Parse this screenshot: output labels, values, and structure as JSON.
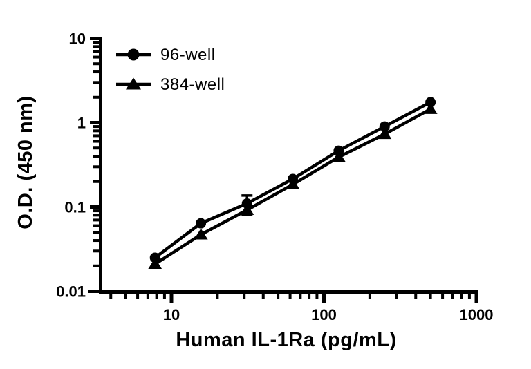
{
  "chart_data": {
    "type": "line",
    "title": "",
    "x_label": "Human IL-1Ra (pg/mL)",
    "y_label": "O.D. (450 nm)",
    "x_scale": "log",
    "y_scale": "log",
    "grid": false,
    "legend_position": "top-left-inside",
    "colors": {
      "series": "#000000",
      "background": "#ffffff"
    },
    "x_ticks": [
      {
        "value": 10,
        "label": "10"
      },
      {
        "value": 100,
        "label": "100"
      },
      {
        "value": 1000,
        "label": "1000"
      }
    ],
    "y_ticks": [
      {
        "value": 0.01,
        "label": "0.01"
      },
      {
        "value": 0.1,
        "label": "0.1"
      },
      {
        "value": 1,
        "label": "1"
      },
      {
        "value": 10,
        "label": "10"
      }
    ],
    "x_minor_ticks": [
      4,
      5,
      6,
      7,
      8,
      9,
      20,
      30,
      40,
      50,
      60,
      70,
      80,
      90,
      200,
      300,
      400,
      500,
      600,
      700,
      800,
      900
    ],
    "y_minor_ticks": [
      0.02,
      0.03,
      0.04,
      0.05,
      0.06,
      0.07,
      0.08,
      0.09,
      0.2,
      0.3,
      0.4,
      0.5,
      0.6,
      0.7,
      0.8,
      0.9,
      2,
      3,
      4,
      5,
      6,
      7,
      8,
      9
    ],
    "x_range": [
      3.2,
      1050
    ],
    "y_range": [
      0.01,
      10
    ],
    "x": [
      7.8,
      15.6,
      31.3,
      62.5,
      125,
      250,
      500
    ],
    "series": [
      {
        "name": "96-well",
        "marker": "circle",
        "od_values": [
          0.025,
          0.064,
          0.11,
          0.215,
          0.465,
          0.9,
          1.75
        ],
        "error_bars": [
          {
            "x": 31.3,
            "od_high": 0.137
          }
        ]
      },
      {
        "name": "384-well",
        "marker": "triangle",
        "od_values": [
          0.021,
          0.047,
          0.092,
          0.185,
          0.39,
          0.73,
          1.45
        ],
        "error_bars": [
          {
            "x": 31.3,
            "od_low": 0.081
          }
        ]
      }
    ]
  }
}
